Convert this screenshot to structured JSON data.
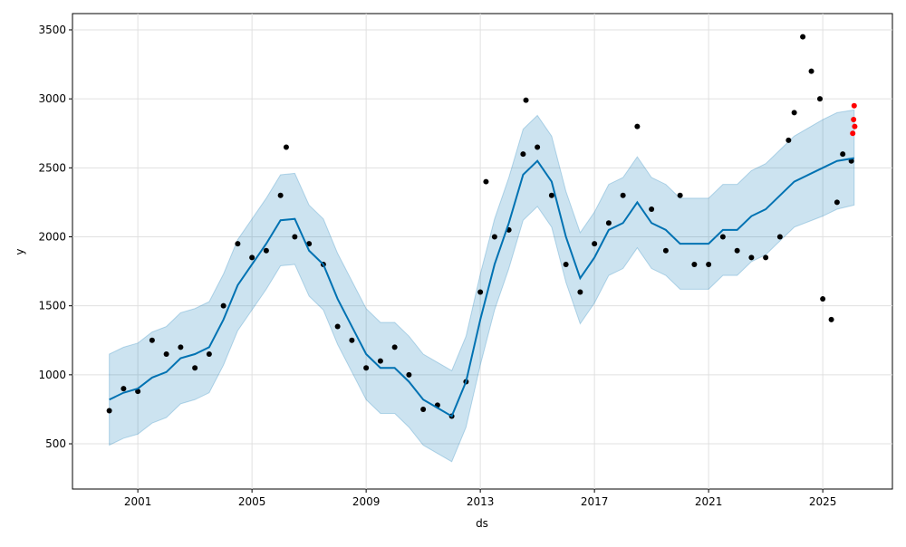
{
  "chart_data": {
    "type": "forecast",
    "xlabel": "ds",
    "ylabel": "y",
    "xlim": [
      1998.71,
      2027.44
    ],
    "ylim": [
      172,
      3618
    ],
    "xticks": [
      2001,
      2005,
      2009,
      2013,
      2017,
      2021,
      2025
    ],
    "yticks": [
      500,
      1000,
      1500,
      2000,
      2500,
      3000,
      3500
    ],
    "grid": true,
    "forecast": {
      "color": "#0072B2",
      "x": [
        2000.0,
        2000.5,
        2001,
        2001.5,
        2002,
        2002.5,
        2003,
        2003.5,
        2004,
        2004.5,
        2005,
        2005.5,
        2006,
        2006.5,
        2007,
        2007.5,
        2008,
        2008.5,
        2009,
        2009.5,
        2010,
        2010.5,
        2011,
        2011.5,
        2012,
        2012.5,
        2013,
        2013.5,
        2014,
        2014.5,
        2015,
        2015.5,
        2016,
        2016.5,
        2017,
        2017.5,
        2018,
        2018.5,
        2019,
        2019.5,
        2020,
        2020.5,
        2021,
        2021.5,
        2022,
        2022.5,
        2023,
        2023.5,
        2024,
        2024.5,
        2025,
        2025.5,
        2026.1
      ],
      "yhat": [
        820,
        870,
        900,
        980,
        1020,
        1120,
        1150,
        1200,
        1400,
        1650,
        1800,
        1950,
        2120,
        2130,
        1900,
        1800,
        1550,
        1350,
        1150,
        1050,
        1050,
        950,
        820,
        760,
        700,
        950,
        1400,
        1800,
        2100,
        2450,
        2550,
        2400,
        2000,
        1700,
        1850,
        2050,
        2100,
        2250,
        2100,
        2050,
        1950,
        1950,
        1950,
        2050,
        2050,
        2150,
        2200,
        2300,
        2400,
        2450,
        2500,
        2550,
        2570
      ],
      "yhat_lower": [
        490,
        540,
        570,
        650,
        690,
        790,
        820,
        870,
        1070,
        1320,
        1470,
        1620,
        1790,
        1800,
        1570,
        1470,
        1220,
        1020,
        820,
        720,
        720,
        620,
        490,
        430,
        370,
        620,
        1070,
        1470,
        1770,
        2120,
        2220,
        2070,
        1670,
        1370,
        1520,
        1720,
        1770,
        1920,
        1770,
        1720,
        1620,
        1620,
        1620,
        1720,
        1720,
        1820,
        1870,
        1970,
        2070,
        2110,
        2150,
        2200,
        2230
      ],
      "yhat_upper": [
        1150,
        1200,
        1230,
        1310,
        1350,
        1450,
        1480,
        1530,
        1730,
        1980,
        2130,
        2280,
        2450,
        2460,
        2230,
        2130,
        1880,
        1680,
        1480,
        1380,
        1380,
        1280,
        1150,
        1090,
        1030,
        1280,
        1730,
        2130,
        2430,
        2780,
        2880,
        2730,
        2330,
        2030,
        2180,
        2380,
        2430,
        2580,
        2430,
        2380,
        2280,
        2280,
        2280,
        2380,
        2380,
        2480,
        2530,
        2630,
        2730,
        2790,
        2850,
        2900,
        2920
      ]
    },
    "observed": {
      "color": "#000000",
      "x": [
        2000.0,
        2000.5,
        2001,
        2001.5,
        2002,
        2002.5,
        2003,
        2003.5,
        2004,
        2004.5,
        2005,
        2005.5,
        2006,
        2006.2,
        2006.5,
        2007,
        2007.5,
        2008,
        2008.5,
        2009,
        2009.5,
        2010,
        2010.5,
        2011,
        2011.5,
        2012,
        2012.5,
        2013,
        2013.2,
        2013.5,
        2014,
        2014.5,
        2014.6,
        2015,
        2015.5,
        2016,
        2016.5,
        2017,
        2017.5,
        2018,
        2018.5,
        2019,
        2019.5,
        2020,
        2020.5,
        2021,
        2021.5,
        2022,
        2022.5,
        2023,
        2023.5,
        2023.8,
        2024,
        2024.3,
        2024.6,
        2024.9,
        2025,
        2025.3,
        2025.5,
        2025.7,
        2026.0
      ],
      "values": [
        740,
        900,
        880,
        1250,
        1150,
        1200,
        1050,
        1150,
        1500,
        1950,
        1850,
        1900,
        2300,
        2650,
        2000,
        1950,
        1800,
        1350,
        1250,
        1050,
        1100,
        1200,
        1000,
        750,
        780,
        700,
        950,
        1600,
        2400,
        2000,
        2050,
        2600,
        2990,
        2650,
        2300,
        1800,
        1600,
        1950,
        2100,
        2300,
        2800,
        2200,
        1900,
        2300,
        1800,
        1800,
        2000,
        1900,
        1850,
        1850,
        2000,
        2700,
        2900,
        3450,
        3200,
        3000,
        1550,
        1400,
        2250,
        2600,
        2550
      ]
    },
    "future": {
      "color": "#ff0000",
      "x": [
        2026.05,
        2026.08,
        2026.1,
        2026.12
      ],
      "values": [
        2750,
        2850,
        2950,
        2800
      ]
    }
  }
}
